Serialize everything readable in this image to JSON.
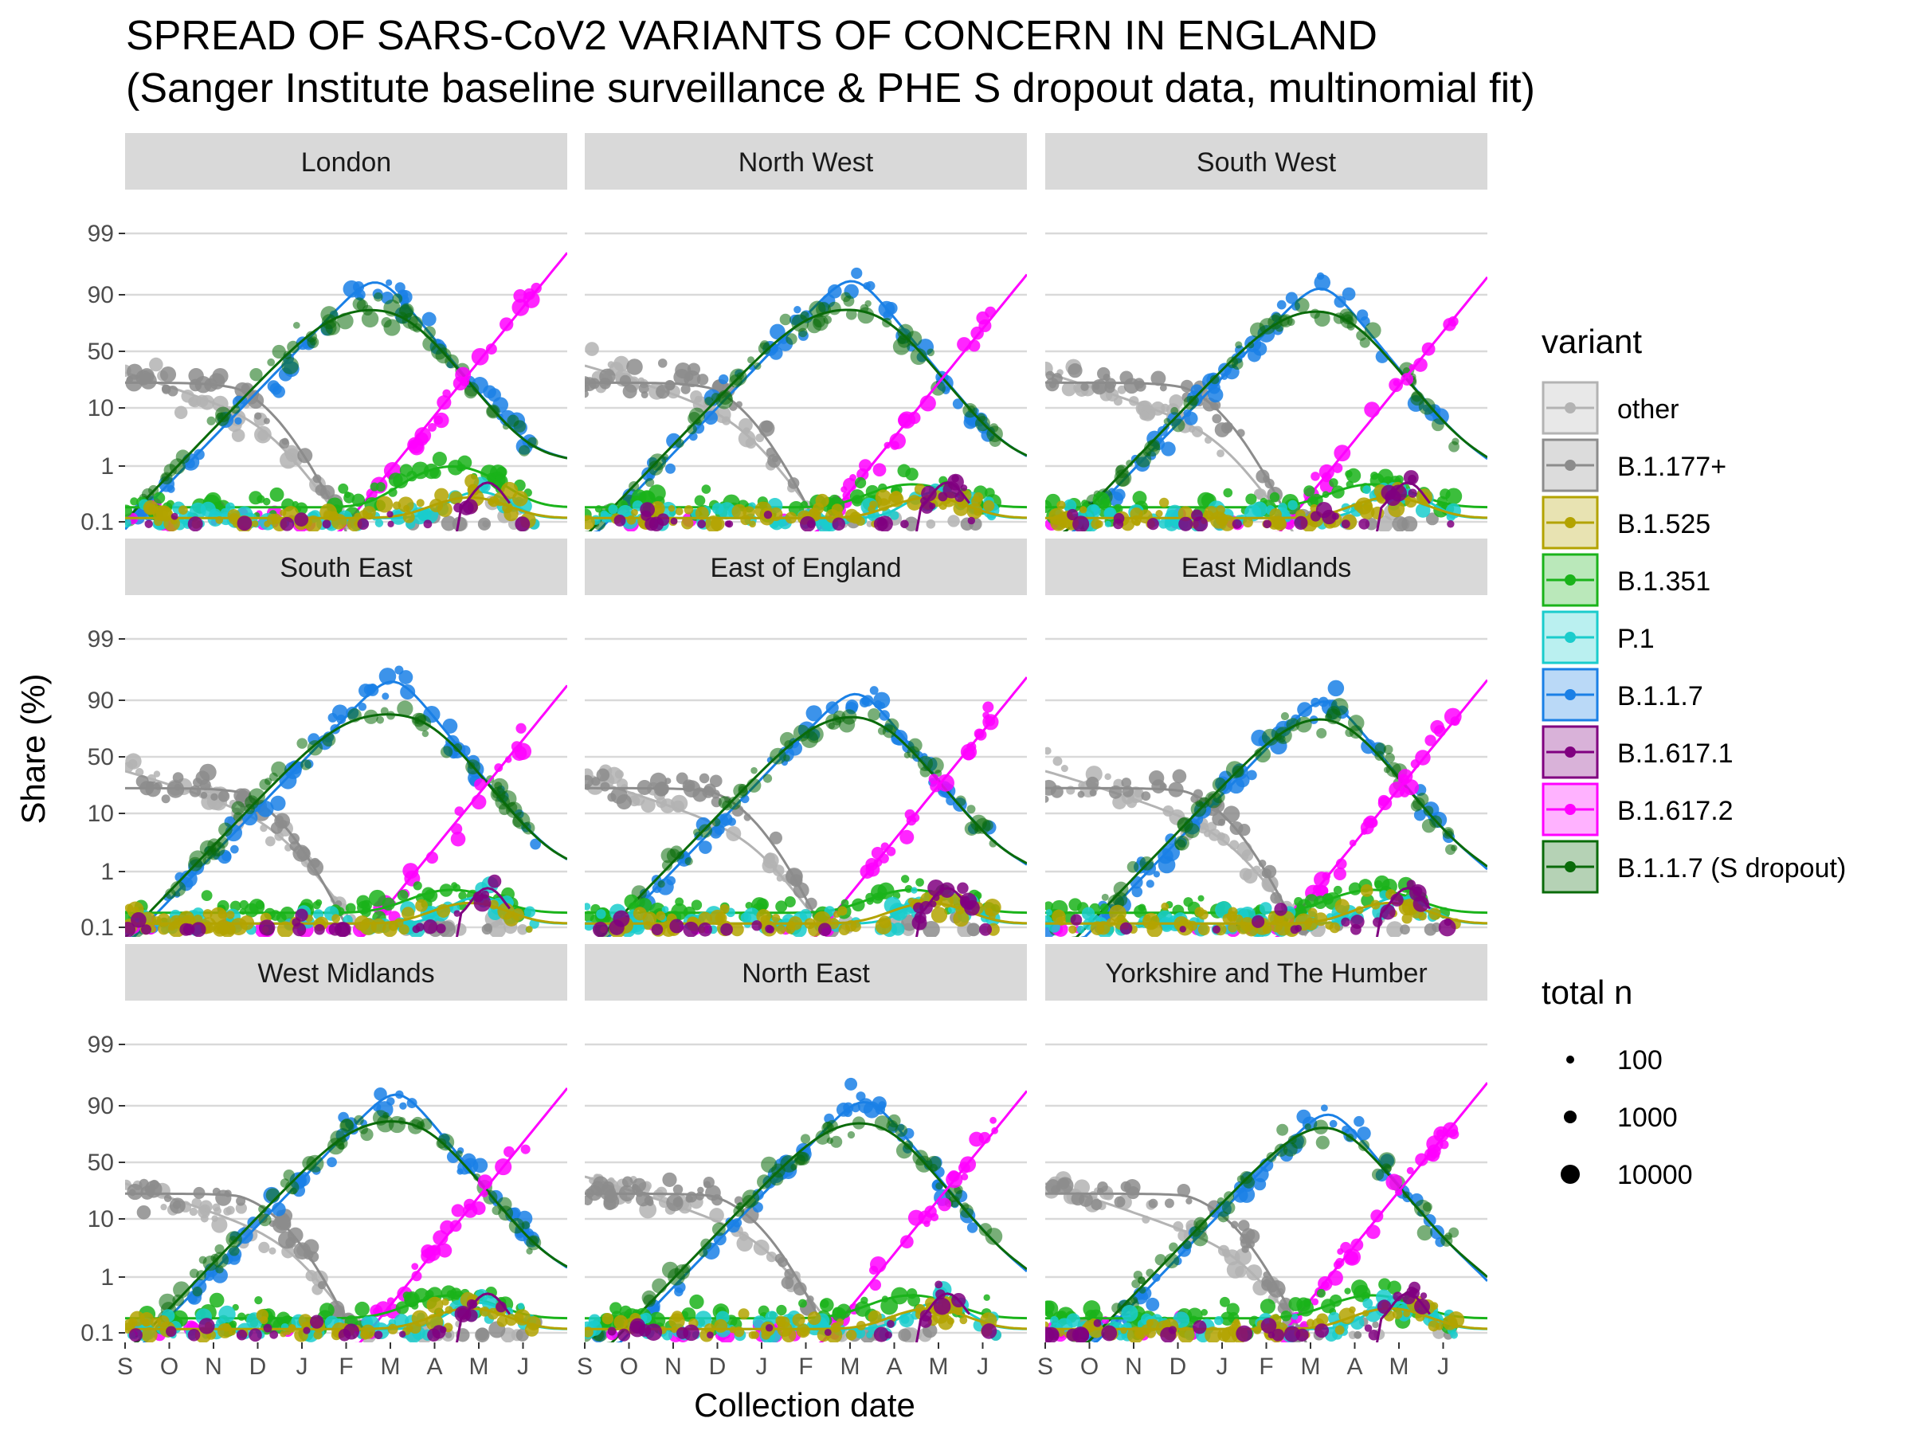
{
  "chart_data": {
    "type": "line",
    "title": "SPREAD OF SARS-CoV2 VARIANTS OF CONCERN IN ENGLAND",
    "subtitle": "(Sanger Institute baseline surveillance & PHE S dropout data, multinomial fit)",
    "xlabel": "Collection date",
    "ylabel": "Share (%)",
    "x_ticks": [
      "S",
      "O",
      "N",
      "D",
      "J",
      "F",
      "M",
      "A",
      "M",
      "J"
    ],
    "y_ticks": [
      "0.1",
      "1",
      "10",
      "50",
      "90",
      "99"
    ],
    "y_scale": "logit",
    "grid": "horizontal major lines",
    "legend_placement": "right",
    "panels": [
      {
        "name": "London"
      },
      {
        "name": "North West"
      },
      {
        "name": "South West"
      },
      {
        "name": "South East"
      },
      {
        "name": "East of England"
      },
      {
        "name": "East Midlands"
      },
      {
        "name": "West Midlands"
      },
      {
        "name": "North East"
      },
      {
        "name": "Yorkshire and The Humber"
      }
    ],
    "legend": {
      "title": "variant",
      "items": [
        {
          "label": "other",
          "color": "#b3b3b3"
        },
        {
          "label": "B.1.177+",
          "color": "#8c8c8c"
        },
        {
          "label": "B.1.525",
          "color": "#b3a300"
        },
        {
          "label": "B.1.351",
          "color": "#1ab31a"
        },
        {
          "label": "P.1",
          "color": "#1acccc"
        },
        {
          "label": "B.1.1.7",
          "color": "#1a80e6"
        },
        {
          "label": "B.1.617.1",
          "color": "#800080"
        },
        {
          "label": "B.1.617.2",
          "color": "#ff00ff"
        },
        {
          "label": "B.1.1.7 (S dropout)",
          "color": "#0a6b0a"
        }
      ]
    },
    "size_legend": {
      "title": "total n",
      "items": [
        {
          "label": "100",
          "value": 100
        },
        {
          "label": "1000",
          "value": 1000
        },
        {
          "label": "10000",
          "value": 10000
        }
      ]
    }
  }
}
